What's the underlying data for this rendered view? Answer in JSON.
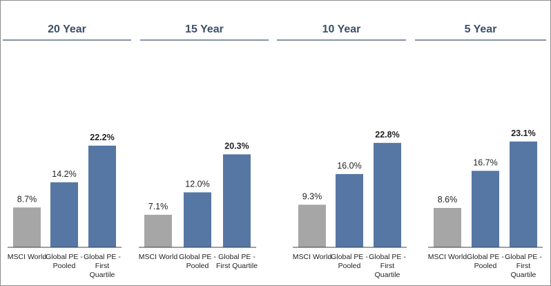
{
  "colors": {
    "benchmark_bar": "#a6a6a6",
    "pe_bar": "#5677a3",
    "title_text": "#3c4f68",
    "title_rule": "#5b6f8c",
    "axis_line": "#404040"
  },
  "chart_data": [
    {
      "type": "bar",
      "title": "20 Year",
      "categories": [
        "MSCI World",
        "Global PE - Pooled",
        "Global PE - First Quartile"
      ],
      "values": [
        8.7,
        14.2,
        22.2
      ],
      "value_labels": [
        "8.7%",
        "14.2%",
        "22.2%"
      ],
      "ylim": [
        0,
        25
      ]
    },
    {
      "type": "bar",
      "title": "15 Year",
      "categories": [
        "MSCI World",
        "Global PE - Pooled",
        "Global PE - First Quartile"
      ],
      "values": [
        7.1,
        12.0,
        20.3
      ],
      "value_labels": [
        "7.1%",
        "12.0%",
        "20.3%"
      ],
      "ylim": [
        0,
        25
      ]
    },
    {
      "type": "bar",
      "title": "10 Year",
      "categories": [
        "MSCI World",
        "Global PE - Pooled",
        "Global PE - First Quartile"
      ],
      "values": [
        9.3,
        16.0,
        22.8
      ],
      "value_labels": [
        "9.3%",
        "16.0%",
        "22.8%"
      ],
      "ylim": [
        0,
        25
      ]
    },
    {
      "type": "bar",
      "title": "5 Year",
      "categories": [
        "MSCI World",
        "Global PE - Pooled",
        "Global PE - First Quartile"
      ],
      "values": [
        8.6,
        16.7,
        23.1
      ],
      "value_labels": [
        "8.6%",
        "16.7%",
        "23.1%"
      ],
      "ylim": [
        0,
        25
      ]
    }
  ]
}
